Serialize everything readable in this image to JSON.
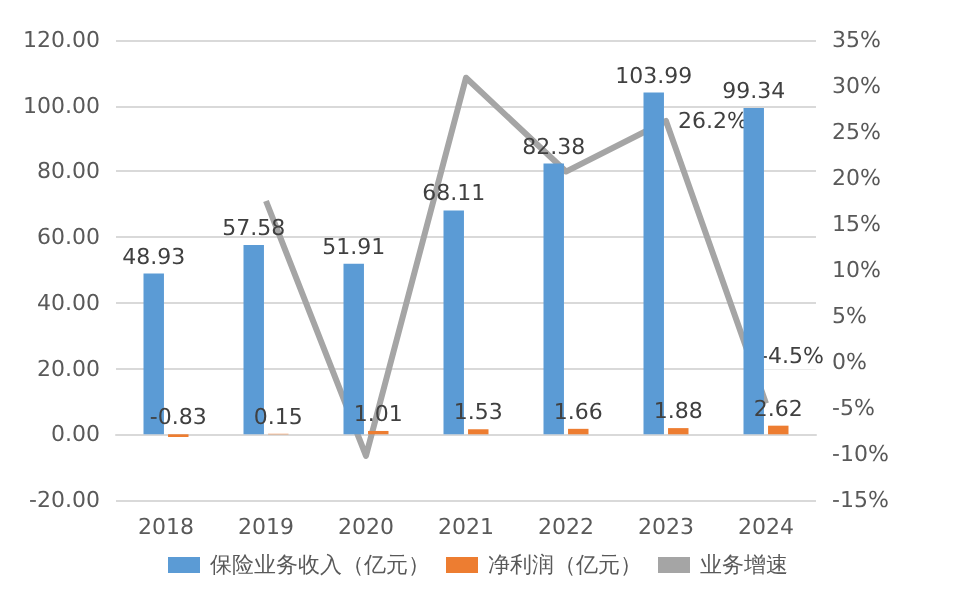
{
  "chart_data": {
    "type": "bar",
    "categories": [
      "2018",
      "2019",
      "2020",
      "2021",
      "2022",
      "2023",
      "2024"
    ],
    "series": [
      {
        "name": "保险业务收入（亿元）",
        "color": "#5b9bd5",
        "values": [
          48.93,
          57.58,
          51.91,
          68.11,
          82.38,
          103.99,
          99.34
        ],
        "data_labels": true
      },
      {
        "name": "净利润（亿元）",
        "color": "#ed7d31",
        "values": [
          -0.83,
          0.15,
          1.01,
          1.53,
          1.66,
          1.88,
          2.62
        ],
        "data_labels": true
      },
      {
        "name": "业务增速",
        "type": "line",
        "axis": "y2",
        "color": "#a5a5a5",
        "marker": "none",
        "values": [
          null,
          17.5,
          -10.2,
          30.9,
          20.7,
          26.2,
          -4.5
        ],
        "value_labels": [
          null,
          null,
          null,
          null,
          null,
          "26.2%",
          "-4.5%"
        ]
      }
    ],
    "ylim": [
      -20,
      120
    ],
    "yticks": [
      {
        "value": -20,
        "label": "-20.00"
      },
      {
        "value": 0,
        "label": "0.00"
      },
      {
        "value": 20,
        "label": "20.00"
      },
      {
        "value": 40,
        "label": "40.00"
      },
      {
        "value": 60,
        "label": "60.00"
      },
      {
        "value": 80,
        "label": "80.00"
      },
      {
        "value": 100,
        "label": "100.00"
      },
      {
        "value": 120,
        "label": "120.00"
      }
    ],
    "y2lim": [
      -15,
      35
    ],
    "y2ticks": [
      {
        "value": -15,
        "label": "-15%"
      },
      {
        "value": -10,
        "label": "-10%"
      },
      {
        "value": -5,
        "label": "-5%"
      },
      {
        "value": 0,
        "label": "0%"
      },
      {
        "value": 5,
        "label": "5%"
      },
      {
        "value": 10,
        "label": "10%"
      },
      {
        "value": 15,
        "label": "15%"
      },
      {
        "value": 20,
        "label": "20%"
      },
      {
        "value": 25,
        "label": "25%"
      },
      {
        "value": 30,
        "label": "30%"
      },
      {
        "value": 35,
        "label": "35%"
      }
    ],
    "grid": "y",
    "legend": "bottom"
  }
}
